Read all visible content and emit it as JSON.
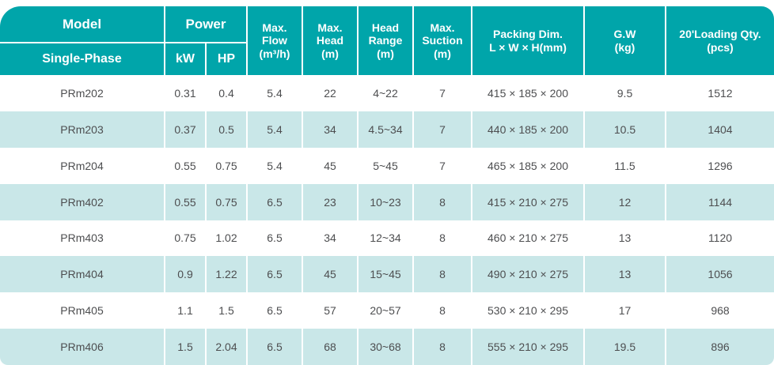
{
  "colors": {
    "header_teal": "#00a5aa",
    "row_alt_blue": "#c9e7e8",
    "body_text_gray": "#4d4e50",
    "header_text": "#ffffff"
  },
  "table": {
    "header": {
      "model": "Model",
      "single_phase": "Single-Phase",
      "power": "Power",
      "kw": "kW",
      "hp": "HP",
      "max_flow": "Max.\nFlow\n(m³/h)",
      "max_head": "Max.\nHead\n(m)",
      "head_range": "Head\nRange\n(m)",
      "max_suction": "Max.\nSuction\n(m)",
      "packing": "Packing Dim.\nL × W × H(mm)",
      "gw": "G.W\n(kg)",
      "loading_qty": "20'Loading Qty.\n(pcs)"
    },
    "rows": [
      {
        "model": "PRm202",
        "kw": "0.31",
        "hp": "0.4",
        "max_flow": "5.4",
        "max_head": "22",
        "head_range": "4~22",
        "max_suction": "7",
        "packing": "415 × 185 × 200",
        "gw": "9.5",
        "qty": "1512"
      },
      {
        "model": "PRm203",
        "kw": "0.37",
        "hp": "0.5",
        "max_flow": "5.4",
        "max_head": "34",
        "head_range": "4.5~34",
        "max_suction": "7",
        "packing": "440 × 185 × 200",
        "gw": "10.5",
        "qty": "1404"
      },
      {
        "model": "PRm204",
        "kw": "0.55",
        "hp": "0.75",
        "max_flow": "5.4",
        "max_head": "45",
        "head_range": "5~45",
        "max_suction": "7",
        "packing": "465 × 185 × 200",
        "gw": "11.5",
        "qty": "1296"
      },
      {
        "model": "PRm402",
        "kw": "0.55",
        "hp": "0.75",
        "max_flow": "6.5",
        "max_head": "23",
        "head_range": "10~23",
        "max_suction": "8",
        "packing": "415 × 210 × 275",
        "gw": "12",
        "qty": "1144"
      },
      {
        "model": "PRm403",
        "kw": "0.75",
        "hp": "1.02",
        "max_flow": "6.5",
        "max_head": "34",
        "head_range": "12~34",
        "max_suction": "8",
        "packing": "460 × 210 × 275",
        "gw": "13",
        "qty": "1120"
      },
      {
        "model": "PRm404",
        "kw": "0.9",
        "hp": "1.22",
        "max_flow": "6.5",
        "max_head": "45",
        "head_range": "15~45",
        "max_suction": "8",
        "packing": "490 × 210 × 275",
        "gw": "13",
        "qty": "1056"
      },
      {
        "model": "PRm405",
        "kw": "1.1",
        "hp": "1.5",
        "max_flow": "6.5",
        "max_head": "57",
        "head_range": "20~57",
        "max_suction": "8",
        "packing": "530 × 210 × 295",
        "gw": "17",
        "qty": "968"
      },
      {
        "model": "PRm406",
        "kw": "1.5",
        "hp": "2.04",
        "max_flow": "6.5",
        "max_head": "68",
        "head_range": "30~68",
        "max_suction": "8",
        "packing": "555 × 210 × 295",
        "gw": "19.5",
        "qty": "896"
      }
    ]
  }
}
